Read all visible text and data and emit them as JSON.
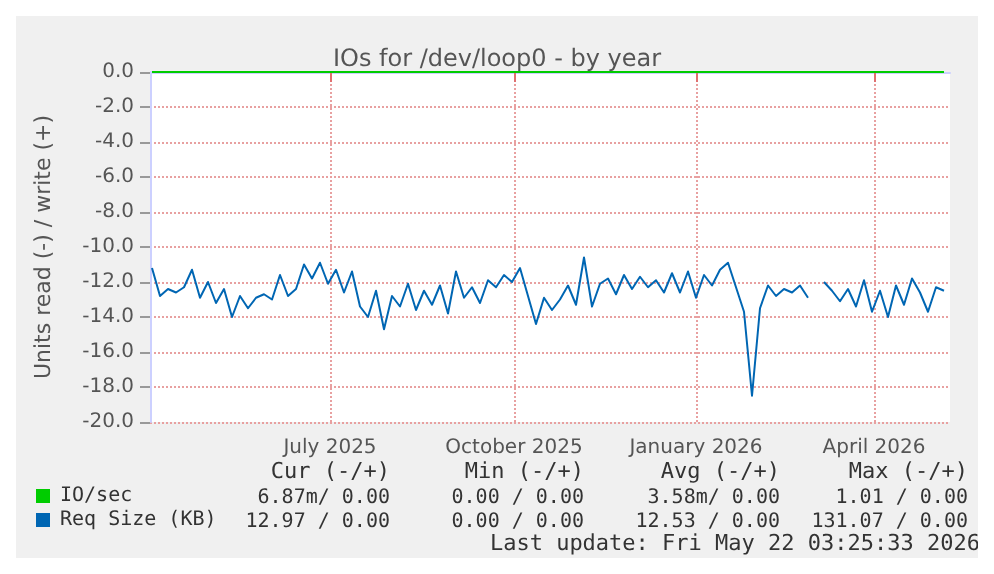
{
  "chart_data": {
    "type": "line",
    "title": "IOs for /dev/loop0 - by year",
    "ylabel": "Units read (-) / write (+)",
    "x": [
      "2025-04-18",
      "2025-04-22",
      "2025-04-26",
      "2025-04-30",
      "2025-05-04",
      "2025-05-08",
      "2025-05-12",
      "2025-05-16",
      "2025-05-20",
      "2025-05-24",
      "2025-05-28",
      "2025-06-01",
      "2025-06-05",
      "2025-06-09",
      "2025-06-13",
      "2025-06-17",
      "2025-06-21",
      "2025-06-25",
      "2025-06-29",
      "2025-07-03",
      "2025-07-07",
      "2025-07-11",
      "2025-07-15",
      "2025-07-19",
      "2025-07-23",
      "2025-07-27",
      "2025-07-31",
      "2025-08-04",
      "2025-08-08",
      "2025-08-12",
      "2025-08-16",
      "2025-08-20",
      "2025-08-24",
      "2025-08-28",
      "2025-09-01",
      "2025-09-05",
      "2025-09-09",
      "2025-09-13",
      "2025-09-17",
      "2025-09-21",
      "2025-09-25",
      "2025-09-29",
      "2025-10-03",
      "2025-10-07",
      "2025-10-11",
      "2025-10-15",
      "2025-10-19",
      "2025-10-23",
      "2025-10-27",
      "2025-10-31",
      "2025-11-04",
      "2025-11-08",
      "2025-11-12",
      "2025-11-16",
      "2025-11-20",
      "2025-11-24",
      "2025-11-28",
      "2025-12-02",
      "2025-12-06",
      "2025-12-10",
      "2025-12-14",
      "2025-12-18",
      "2025-12-22",
      "2025-12-26",
      "2025-12-30",
      "2026-01-03",
      "2026-01-07",
      "2026-01-11",
      "2026-01-15",
      "2026-01-19",
      "2026-01-23",
      "2026-01-27",
      "2026-01-31",
      "2026-02-04",
      "2026-02-08",
      "2026-02-12",
      "2026-02-16",
      "2026-02-20",
      "2026-02-24",
      "2026-02-28",
      "2026-03-04",
      "2026-03-08",
      "2026-03-12",
      "2026-03-16",
      "2026-03-20",
      "2026-03-24",
      "2026-03-28",
      "2026-04-01",
      "2026-04-05",
      "2026-04-09",
      "2026-04-13",
      "2026-04-17",
      "2026-04-21",
      "2026-04-25",
      "2026-04-29",
      "2026-05-03",
      "2026-05-07",
      "2026-05-11",
      "2026-05-15",
      "2026-05-19"
    ],
    "series": [
      {
        "name": "IO/sec",
        "color": "#00cc00",
        "values": [
          0,
          0,
          0,
          0,
          0,
          0,
          0,
          0,
          0,
          0,
          0,
          0,
          0,
          0,
          0,
          0,
          0,
          0,
          0,
          0,
          0,
          0,
          0,
          0,
          0,
          0,
          0,
          0,
          0,
          0,
          0,
          0,
          0,
          0,
          0,
          0,
          0,
          0,
          0,
          0,
          0,
          0,
          0,
          0,
          0,
          0,
          0,
          0,
          0,
          0,
          0,
          0,
          0,
          0,
          0,
          0,
          0,
          0,
          0,
          0,
          0,
          0,
          0,
          0,
          0,
          0,
          0,
          0,
          0,
          0,
          0,
          0,
          0,
          0,
          0,
          0,
          0,
          0,
          0,
          0,
          0,
          0,
          0,
          0,
          0,
          0,
          0,
          0,
          0,
          0,
          0,
          0,
          0,
          0,
          0,
          0,
          0,
          0,
          0,
          0
        ]
      },
      {
        "name": "Req Size (KB)",
        "color": "#0066b3",
        "values": [
          -11.2,
          -12.8,
          -12.4,
          -12.6,
          -12.3,
          -11.3,
          -12.9,
          -12.0,
          -13.2,
          -12.4,
          -14.0,
          -12.8,
          -13.5,
          -12.9,
          -12.7,
          -13.0,
          -11.6,
          -12.8,
          -12.4,
          -11.0,
          -11.8,
          -10.9,
          -12.1,
          -11.3,
          -12.6,
          -11.4,
          -13.4,
          -14.0,
          -12.5,
          -14.7,
          -12.8,
          -13.4,
          -12.1,
          -13.6,
          -12.5,
          -13.3,
          -12.2,
          -13.8,
          -11.4,
          -12.9,
          -12.3,
          -13.2,
          -11.9,
          -12.3,
          -11.6,
          -12.0,
          -11.2,
          -12.8,
          -14.4,
          -12.9,
          -13.6,
          -13.0,
          -12.2,
          -13.3,
          -10.6,
          -13.4,
          -12.1,
          -11.8,
          -12.7,
          -11.6,
          -12.4,
          -11.7,
          -12.3,
          -11.9,
          -12.6,
          -11.5,
          -12.6,
          -11.4,
          -12.9,
          -11.6,
          -12.2,
          -11.3,
          -10.9,
          -12.3,
          -13.7,
          -18.5,
          -13.5,
          -12.2,
          -12.8,
          -12.4,
          -12.6,
          -12.2,
          -12.9,
          null,
          -12.0,
          -12.5,
          -13.1,
          -12.4,
          -13.4,
          -11.9,
          -13.7,
          -12.5,
          -14.0,
          -12.2,
          -13.3,
          -11.8,
          -12.6,
          -13.7,
          -12.3,
          -12.5
        ]
      }
    ],
    "xlim": [
      "2025-04-17",
      "2026-05-22"
    ],
    "xticks": [
      {
        "value": "2025-07-16",
        "label": "July 2025"
      },
      {
        "value": "2025-10-16",
        "label": "October 2025"
      },
      {
        "value": "2026-01-15",
        "label": "January 2026"
      },
      {
        "value": "2026-04-14",
        "label": "April 2026"
      }
    ],
    "ylim": [
      -20,
      0
    ],
    "yticks": [
      {
        "value": -20,
        "label": "-20.0"
      },
      {
        "value": -18,
        "label": "-18.0"
      },
      {
        "value": -16,
        "label": "-16.0"
      },
      {
        "value": -14,
        "label": "-14.0"
      },
      {
        "value": -12,
        "label": "-12.0"
      },
      {
        "value": -10,
        "label": "-10.0"
      },
      {
        "value": -8,
        "label": "-8.0"
      },
      {
        "value": -6,
        "label": "-6.0"
      },
      {
        "value": -4,
        "label": "-4.0"
      },
      {
        "value": -2,
        "label": "-2.0"
      },
      {
        "value": 0,
        "label": "0.0"
      }
    ],
    "grid": true,
    "legend": "bottom left",
    "marker": "none",
    "line_style": "solid",
    "annotations": [
      "Cur (-/+)",
      "Min (-/+)",
      "Avg (-/+)",
      "Max (-/+)",
      "6.87m/ 0.00",
      "0.00 / 0.00",
      "3.58m/ 0.00",
      "1.01 / 0.00",
      "12.97 / 0.00",
      "0.00 / 0.00",
      "12.53 / 0.00",
      "131.07 / 0.00",
      "Last update: Fri May 22 03:25:33 2026"
    ]
  }
}
